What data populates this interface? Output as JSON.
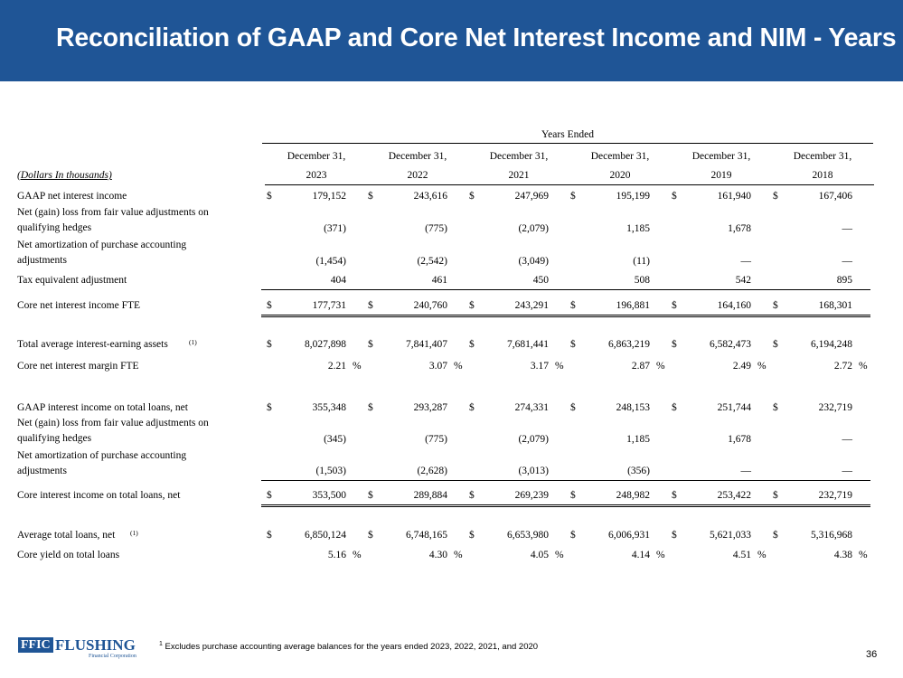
{
  "title": "Reconciliation of GAAP and Core Net Interest Income and NIM - Years",
  "header": {
    "years_ended": "Years Ended",
    "units_label": "(Dollars In thousands)",
    "columns": [
      {
        "date": "December 31,",
        "year": "2023"
      },
      {
        "date": "December 31,",
        "year": "2022"
      },
      {
        "date": "December 31,",
        "year": "2021"
      },
      {
        "date": "December 31,",
        "year": "2020"
      },
      {
        "date": "December 31,",
        "year": "2019"
      },
      {
        "date": "December 31,",
        "year": "2018"
      }
    ]
  },
  "currency_symbol": "$",
  "percent_symbol": "%",
  "rows": {
    "gaap_nii": {
      "label": "GAAP net interest income",
      "values": [
        "179,152",
        "243,616",
        "247,969",
        "195,199",
        "161,940",
        "167,406"
      ]
    },
    "fv_adj": {
      "label_line1": "Net (gain) loss from fair value adjustments on",
      "label_line2": "qualifying hedges",
      "values": [
        "(371)",
        "(775)",
        "(2,079)",
        "1,185",
        "1,678",
        "—"
      ]
    },
    "amort": {
      "label_line1": "Net amortization of purchase accounting",
      "label_line2": "adjustments",
      "values": [
        "(1,454)",
        "(2,542)",
        "(3,049)",
        "(11)",
        "—",
        "—"
      ]
    },
    "tax_eq": {
      "label": "Tax equivalent adjustment",
      "values": [
        "404",
        "461",
        "450",
        "508",
        "542",
        "895"
      ]
    },
    "core_nii": {
      "label": "Core net interest income FTE",
      "values": [
        "177,731",
        "240,760",
        "243,291",
        "196,881",
        "164,160",
        "168,301"
      ]
    },
    "avg_assets": {
      "label": "Total average interest-earning assets",
      "footnote_ref": "(1)",
      "values": [
        "8,027,898",
        "7,841,407",
        "7,681,441",
        "6,863,219",
        "6,582,473",
        "6,194,248"
      ]
    },
    "core_nim": {
      "label": "Core net interest margin FTE",
      "values": [
        "2.21",
        "3.07",
        "3.17",
        "2.87",
        "2.49",
        "2.72"
      ]
    },
    "gaap_loans": {
      "label": "GAAP interest income on total loans, net",
      "values": [
        "355,348",
        "293,287",
        "274,331",
        "248,153",
        "251,744",
        "232,719"
      ]
    },
    "fv_adj_loans": {
      "label_line1": "Net (gain) loss from fair value adjustments on",
      "label_line2": "qualifying hedges",
      "values": [
        "(345)",
        "(775)",
        "(2,079)",
        "1,185",
        "1,678",
        "—"
      ]
    },
    "amort_loans": {
      "label_line1": "Net amortization of purchase accounting",
      "label_line2": "adjustments",
      "values": [
        "(1,503)",
        "(2,628)",
        "(3,013)",
        "(356)",
        "—",
        "—"
      ]
    },
    "core_loans": {
      "label": "Core interest income on total loans, net",
      "values": [
        "353,500",
        "289,884",
        "269,239",
        "248,982",
        "253,422",
        "232,719"
      ]
    },
    "avg_loans": {
      "label": "Average total loans, net",
      "footnote_ref": "(1)",
      "values": [
        "6,850,124",
        "6,748,165",
        "6,653,980",
        "6,006,931",
        "5,621,033",
        "5,316,968"
      ]
    },
    "core_yield": {
      "label": "Core yield on total loans",
      "values": [
        "5.16",
        "4.30",
        "4.05",
        "4.14",
        "4.51",
        "4.38"
      ]
    }
  },
  "footer": {
    "footnote_marker": "1",
    "footnote": "Excludes purchase accounting average balances for the years ended 2023, 2022, 2021, and 2020",
    "page_number": "36",
    "logo_abbrev": "FFIC",
    "logo_name": "FLUSHING",
    "logo_sub": "Financial Corporation"
  }
}
